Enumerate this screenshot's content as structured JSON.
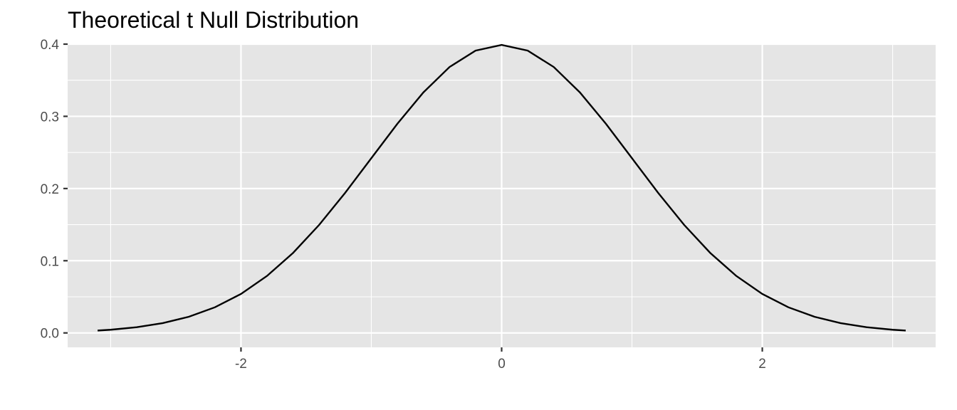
{
  "chart_data": {
    "type": "line",
    "title": "Theoretical t Null Distribution",
    "xlabel": "",
    "ylabel": "",
    "xlim": [
      -3.33,
      3.33
    ],
    "ylim": [
      -0.02,
      0.4
    ],
    "x_ticks": [
      -2,
      0,
      2
    ],
    "x_tick_labels": [
      "-2",
      "0",
      "2"
    ],
    "y_ticks": [
      0.0,
      0.1,
      0.2,
      0.3,
      0.4
    ],
    "y_tick_labels": [
      "0.0",
      "0.1",
      "0.2",
      "0.3",
      "0.4"
    ],
    "x_minor_ticks": [
      -3,
      -1,
      1,
      3
    ],
    "y_minor_ticks": [
      0.05,
      0.15,
      0.25,
      0.35
    ],
    "grid": true,
    "legend": "none",
    "colors": {
      "panel": "#e5e5e5",
      "grid": "#ffffff",
      "line": "#000000",
      "tick_text": "#4d4d4d"
    },
    "series": [
      {
        "x": [
          -3.1,
          -3.0,
          -2.8,
          -2.6,
          -2.4,
          -2.2,
          -2.0,
          -1.8,
          -1.6,
          -1.4,
          -1.2,
          -1.0,
          -0.8,
          -0.6,
          -0.4,
          -0.2,
          0.0,
          0.2,
          0.4,
          0.6,
          0.8,
          1.0,
          1.2,
          1.4,
          1.6,
          1.8,
          2.0,
          2.2,
          2.4,
          2.6,
          2.8,
          3.0,
          3.1
        ],
        "y": [
          0.0033,
          0.0044,
          0.0079,
          0.0136,
          0.0224,
          0.0355,
          0.054,
          0.079,
          0.1109,
          0.1497,
          0.1942,
          0.242,
          0.2897,
          0.3332,
          0.3683,
          0.391,
          0.3989,
          0.391,
          0.3683,
          0.3332,
          0.2897,
          0.242,
          0.1942,
          0.1497,
          0.1109,
          0.079,
          0.054,
          0.0355,
          0.0224,
          0.0136,
          0.0079,
          0.0044,
          0.0033
        ]
      }
    ]
  }
}
